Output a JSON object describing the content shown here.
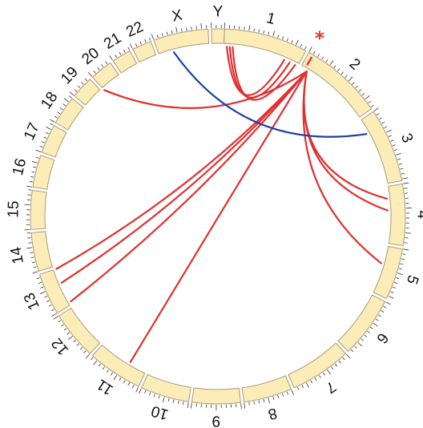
{
  "diagram": {
    "chromosomes": [
      {
        "name": "1",
        "label": "1"
      },
      {
        "name": "2",
        "label": "2"
      },
      {
        "name": "3",
        "label": "3"
      },
      {
        "name": "4",
        "label": "4"
      },
      {
        "name": "5",
        "label": "5"
      },
      {
        "name": "6",
        "label": "6"
      },
      {
        "name": "7",
        "label": "7"
      },
      {
        "name": "8",
        "label": "8"
      },
      {
        "name": "9",
        "label": "9"
      },
      {
        "name": "10",
        "label": "10"
      },
      {
        "name": "11",
        "label": "11"
      },
      {
        "name": "12",
        "label": "12"
      },
      {
        "name": "13",
        "label": "13"
      },
      {
        "name": "14",
        "label": "14"
      },
      {
        "name": "15",
        "label": "15"
      },
      {
        "name": "16",
        "label": "16"
      },
      {
        "name": "17",
        "label": "17"
      },
      {
        "name": "18",
        "label": "18"
      },
      {
        "name": "19",
        "label": "19"
      },
      {
        "name": "20",
        "label": "20"
      },
      {
        "name": "21",
        "label": "21"
      },
      {
        "name": "22",
        "label": "22"
      },
      {
        "name": "X",
        "label": "X"
      },
      {
        "name": "Y",
        "label": "Y"
      }
    ],
    "marker": {
      "symbol": "*",
      "chromosome": "2"
    },
    "colors": {
      "ideogram_fill": "#fbecb8",
      "ideogram_stroke": "#a89c7a",
      "link_red": "#e03030",
      "link_blue": "#1f3f9f",
      "marker": "#e53935"
    },
    "links": [
      {
        "from": "1",
        "to": "1",
        "color": "red"
      },
      {
        "from": "1",
        "to": "1",
        "color": "red"
      },
      {
        "from": "1",
        "to": "1",
        "color": "red"
      },
      {
        "from": "2",
        "to": "21",
        "color": "red"
      },
      {
        "from": "2",
        "to": "4",
        "color": "red"
      },
      {
        "from": "2",
        "to": "4",
        "color": "red"
      },
      {
        "from": "2",
        "to": "5",
        "color": "red"
      },
      {
        "from": "2",
        "to": "14",
        "color": "red"
      },
      {
        "from": "2",
        "to": "13",
        "color": "red"
      },
      {
        "from": "2",
        "to": "13",
        "color": "red"
      },
      {
        "from": "2",
        "to": "10",
        "color": "red"
      },
      {
        "from": "X",
        "to": "3",
        "color": "blue"
      }
    ]
  }
}
